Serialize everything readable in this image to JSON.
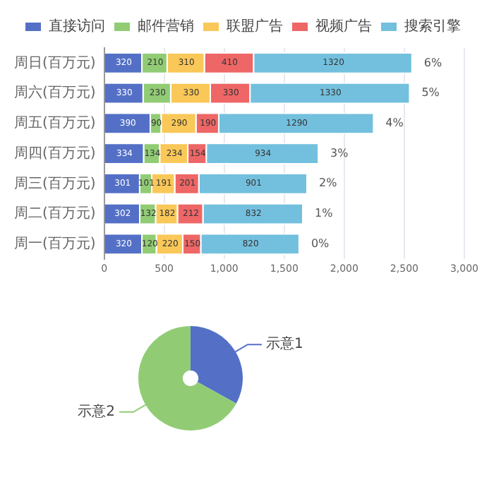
{
  "chart_data": [
    {
      "type": "bar",
      "orientation": "horizontal",
      "stacked": true,
      "categories": [
        "周日(百万元)",
        "周六(百万元)",
        "周五(百万元)",
        "周四(百万元)",
        "周三(百万元)",
        "周二(百万元)",
        "周一(百万元)"
      ],
      "series": [
        {
          "name": "直接访问",
          "color": "#5470c6",
          "values": [
            320,
            330,
            390,
            334,
            301,
            302,
            320
          ]
        },
        {
          "name": "邮件营销",
          "color": "#91cc75",
          "values": [
            210,
            230,
            90,
            134,
            101,
            132,
            120
          ]
        },
        {
          "name": "联盟广告",
          "color": "#fac858",
          "values": [
            310,
            330,
            290,
            234,
            191,
            182,
            220
          ]
        },
        {
          "name": "视频广告",
          "color": "#ee6666",
          "values": [
            410,
            330,
            190,
            154,
            201,
            212,
            150
          ]
        },
        {
          "name": "搜索引擎",
          "color": "#73c0de",
          "values": [
            1320,
            1330,
            1290,
            934,
            901,
            832,
            820
          ]
        }
      ],
      "xlim": [
        0,
        3000
      ],
      "xticks": [
        0,
        500,
        {
          "value": 1000,
          "label": "1,000"
        },
        {
          "value": 1500,
          "label": "1,500"
        },
        {
          "value": 2000,
          "label": "2,000"
        },
        {
          "value": 2500,
          "label": "2,500"
        },
        {
          "value": 3000,
          "label": "3,000"
        }
      ],
      "grid": "x",
      "legend": "top",
      "data_labels": true,
      "annotations": [
        {
          "text": "6%",
          "x": 2570,
          "y": "周日(百万元)"
        },
        {
          "text": "5%",
          "x": 2550,
          "y": "周六(百万元)"
        },
        {
          "text": "4%",
          "x": 2250,
          "y": "周五(百万元)"
        },
        {
          "text": "3%",
          "x": 1790,
          "y": "周四(百万元)"
        },
        {
          "text": "2%",
          "x": 1695,
          "y": "周三(百万元)"
        },
        {
          "text": "1%",
          "x": 1660,
          "y": "周二(百万元)"
        },
        {
          "text": "0%",
          "x": 1630,
          "y": "周一(百万元)"
        }
      ]
    },
    {
      "type": "donut",
      "categories": [
        "示意1",
        "示意2"
      ],
      "values": [
        33,
        67
      ],
      "colors": [
        "#5470c6",
        "#91cc75"
      ]
    }
  ]
}
